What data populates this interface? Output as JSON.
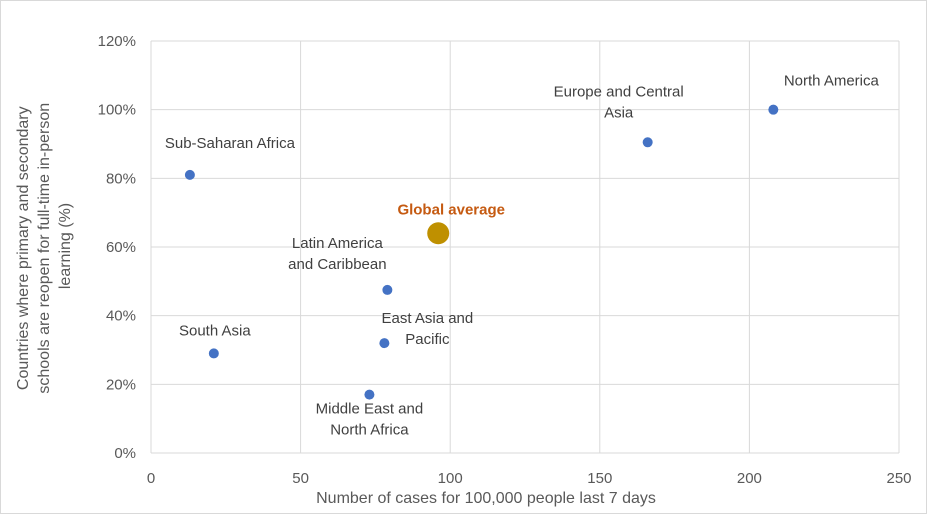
{
  "chart_data": {
    "type": "scatter",
    "title": "",
    "xlabel": "Number of cases for 100,000 people last 7 days",
    "ylabel_lines": [
      "Countries where primary and secondary",
      "schools are reopen for full-time in-person",
      "learning (%)"
    ],
    "xlim": [
      0,
      250
    ],
    "ylim": [
      0,
      120
    ],
    "x_ticks": [
      0,
      50,
      100,
      150,
      200,
      250
    ],
    "y_ticks": [
      0,
      20,
      40,
      60,
      80,
      100,
      120
    ],
    "y_tick_labels": [
      "0%",
      "20%",
      "40%",
      "60%",
      "80%",
      "100%",
      "120%"
    ],
    "grid": true,
    "point_color": "#4472c4",
    "highlight_color": "#bf9000",
    "highlight_label_color": "#c55a11",
    "points": [
      {
        "label_lines": [
          "Sub-Saharan Africa"
        ],
        "x": 13,
        "y": 81,
        "highlight": false
      },
      {
        "label_lines": [
          "South Asia"
        ],
        "x": 21,
        "y": 29,
        "highlight": false
      },
      {
        "label_lines": [
          "Middle East and",
          "North Africa"
        ],
        "x": 73,
        "y": 17,
        "highlight": false
      },
      {
        "label_lines": [
          "East Asia and",
          "Pacific"
        ],
        "x": 78,
        "y": 32,
        "highlight": false
      },
      {
        "label_lines": [
          "Latin America",
          "and Caribbean"
        ],
        "x": 79,
        "y": 47.5,
        "highlight": false
      },
      {
        "label_lines": [
          "Global average"
        ],
        "x": 96,
        "y": 64,
        "highlight": true
      },
      {
        "label_lines": [
          "Europe and Central",
          "Asia"
        ],
        "x": 166,
        "y": 90.5,
        "highlight": false
      },
      {
        "label_lines": [
          "North America"
        ],
        "x": 208,
        "y": 100,
        "highlight": false
      }
    ]
  }
}
